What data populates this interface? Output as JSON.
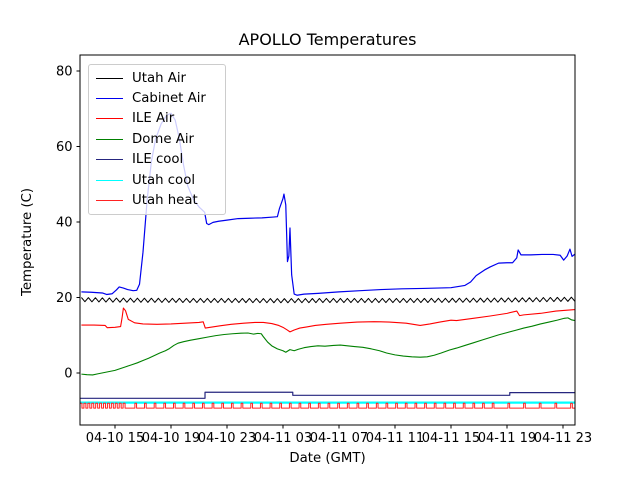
{
  "chart_data": {
    "type": "line",
    "title": "APOLLO Temperatures",
    "xlabel": "Date (GMT)",
    "ylabel": "Temperature (C)",
    "grid": false,
    "x_axis": {
      "unit": "hours relative to 04-10 12:00 GMT (derived from tick labels)",
      "tick_hours": [
        3,
        7,
        11,
        15,
        19,
        23,
        27,
        31,
        35
      ],
      "tick_labels": [
        "04-10 15",
        "04-10 19",
        "04-10 23",
        "04-11 03",
        "04-11 07",
        "04-11 11",
        "04-11 15",
        "04-11 19",
        "04-11 23"
      ],
      "xlim_hours": [
        0.5,
        35.86
      ]
    },
    "y_axis": {
      "ticks": [
        0,
        20,
        40,
        60,
        80
      ],
      "tick_labels": [
        "0",
        "20",
        "40",
        "60",
        "80"
      ],
      "ylim": [
        -13.77,
        84.23
      ]
    },
    "legend": {
      "position": "upper left"
    },
    "series": [
      {
        "name": "Utah Air",
        "color": "#000000",
        "width": 1.0,
        "style": "sawtooth",
        "amplitude": 0.55,
        "period_h": 0.5,
        "x_start": 0.6,
        "x_end": 35.86,
        "mean_points": [
          [
            0.6,
            19.45
          ],
          [
            3,
            19.3
          ],
          [
            6,
            19.25
          ],
          [
            9,
            19.2
          ],
          [
            12,
            19.2
          ],
          [
            15,
            19.15
          ],
          [
            18,
            19.2
          ],
          [
            21,
            19.2
          ],
          [
            24,
            19.2
          ],
          [
            27,
            19.25
          ],
          [
            30,
            19.3
          ],
          [
            33,
            19.4
          ],
          [
            35.86,
            19.55
          ]
        ]
      },
      {
        "name": "Cabinet Air",
        "color": "#0000ee",
        "width": 1.2,
        "style": "points",
        "points": [
          [
            0.6,
            21.5
          ],
          [
            1.3,
            21.4
          ],
          [
            2.1,
            21.2
          ],
          [
            2.4,
            20.8
          ],
          [
            2.8,
            21.0
          ],
          [
            3.1,
            22.0
          ],
          [
            3.3,
            22.8
          ],
          [
            3.6,
            22.5
          ],
          [
            3.9,
            22.1
          ],
          [
            4.3,
            21.8
          ],
          [
            4.55,
            21.9
          ],
          [
            4.75,
            23.5
          ],
          [
            5.0,
            32.0
          ],
          [
            5.3,
            46.0
          ],
          [
            5.6,
            56.0
          ],
          [
            5.9,
            62.0
          ],
          [
            6.3,
            66.0
          ],
          [
            6.7,
            68.3
          ],
          [
            7.0,
            68.8
          ],
          [
            7.3,
            67.0
          ],
          [
            7.6,
            62.0
          ],
          [
            7.9,
            55.0
          ],
          [
            8.2,
            49.5
          ],
          [
            8.6,
            46.0
          ],
          [
            9.0,
            44.0
          ],
          [
            9.4,
            42.6
          ],
          [
            9.55,
            39.6
          ],
          [
            9.7,
            39.3
          ],
          [
            10.0,
            39.9
          ],
          [
            10.4,
            40.2
          ],
          [
            11.0,
            40.5
          ],
          [
            11.8,
            40.9
          ],
          [
            12.6,
            41.0
          ],
          [
            13.5,
            41.1
          ],
          [
            14.3,
            41.3
          ],
          [
            14.6,
            41.4
          ],
          [
            14.75,
            43.6
          ],
          [
            15.0,
            46.2
          ],
          [
            15.07,
            47.4
          ],
          [
            15.2,
            44.5
          ],
          [
            15.32,
            29.5
          ],
          [
            15.42,
            31.0
          ],
          [
            15.5,
            38.4
          ],
          [
            15.62,
            26.0
          ],
          [
            15.8,
            20.9
          ],
          [
            16.0,
            20.6
          ],
          [
            16.5,
            20.9
          ],
          [
            17.5,
            21.1
          ],
          [
            19.0,
            21.5
          ],
          [
            20.5,
            21.8
          ],
          [
            22.0,
            22.1
          ],
          [
            23.5,
            22.3
          ],
          [
            25.0,
            22.4
          ],
          [
            26.0,
            22.5
          ],
          [
            27.0,
            22.6
          ],
          [
            28.0,
            23.2
          ],
          [
            28.4,
            24.1
          ],
          [
            28.8,
            25.8
          ],
          [
            29.4,
            27.3
          ],
          [
            29.8,
            28.1
          ],
          [
            30.4,
            29.1
          ],
          [
            31.0,
            29.2
          ],
          [
            31.4,
            29.2
          ],
          [
            31.7,
            30.5
          ],
          [
            31.8,
            32.6
          ],
          [
            32.0,
            31.3
          ],
          [
            32.7,
            31.3
          ],
          [
            33.5,
            31.4
          ],
          [
            34.3,
            31.4
          ],
          [
            34.8,
            31.2
          ],
          [
            35.05,
            29.9
          ],
          [
            35.3,
            31.0
          ],
          [
            35.5,
            32.8
          ],
          [
            35.65,
            30.9
          ],
          [
            35.86,
            31.5
          ]
        ]
      },
      {
        "name": "ILE Air",
        "color": "#ff0000",
        "width": 1.1,
        "style": "points",
        "points": [
          [
            0.6,
            12.7
          ],
          [
            1.5,
            12.7
          ],
          [
            2.3,
            12.6
          ],
          [
            2.45,
            12.0
          ],
          [
            3.0,
            12.1
          ],
          [
            3.4,
            12.3
          ],
          [
            3.5,
            14.5
          ],
          [
            3.6,
            17.2
          ],
          [
            3.75,
            16.5
          ],
          [
            3.95,
            14.2
          ],
          [
            4.4,
            13.3
          ],
          [
            5.0,
            13.0
          ],
          [
            6.0,
            12.9
          ],
          [
            7.0,
            13.0
          ],
          [
            8.0,
            13.2
          ],
          [
            9.0,
            13.4
          ],
          [
            9.3,
            13.55
          ],
          [
            9.45,
            11.9
          ],
          [
            9.8,
            12.1
          ],
          [
            10.5,
            12.5
          ],
          [
            11.3,
            12.9
          ],
          [
            12.2,
            13.2
          ],
          [
            13.0,
            13.4
          ],
          [
            13.6,
            13.4
          ],
          [
            14.2,
            13.1
          ],
          [
            14.7,
            12.6
          ],
          [
            15.0,
            12.1
          ],
          [
            15.3,
            11.4
          ],
          [
            15.5,
            10.9
          ],
          [
            15.8,
            11.4
          ],
          [
            16.2,
            11.9
          ],
          [
            16.7,
            12.2
          ],
          [
            17.3,
            12.6
          ],
          [
            18.1,
            12.9
          ],
          [
            19.1,
            13.2
          ],
          [
            20.3,
            13.5
          ],
          [
            21.5,
            13.6
          ],
          [
            22.6,
            13.5
          ],
          [
            23.8,
            13.2
          ],
          [
            24.8,
            12.6
          ],
          [
            25.5,
            13.0
          ],
          [
            26.2,
            13.5
          ],
          [
            27.0,
            14.0
          ],
          [
            27.4,
            13.9
          ],
          [
            28.6,
            14.5
          ],
          [
            29.8,
            15.1
          ],
          [
            31.0,
            15.8
          ],
          [
            31.7,
            16.4
          ],
          [
            31.9,
            15.2
          ],
          [
            32.2,
            15.4
          ],
          [
            33.4,
            15.8
          ],
          [
            34.5,
            16.4
          ],
          [
            35.86,
            16.8
          ]
        ]
      },
      {
        "name": "Dome Air",
        "color": "#008000",
        "width": 1.1,
        "style": "points",
        "points": [
          [
            0.6,
            -0.3
          ],
          [
            1.0,
            -0.45
          ],
          [
            1.4,
            -0.5
          ],
          [
            1.8,
            -0.2
          ],
          [
            2.2,
            0.1
          ],
          [
            2.6,
            0.4
          ],
          [
            3.0,
            0.7
          ],
          [
            3.4,
            1.2
          ],
          [
            3.8,
            1.7
          ],
          [
            4.2,
            2.2
          ],
          [
            4.6,
            2.7
          ],
          [
            5.0,
            3.3
          ],
          [
            5.4,
            3.9
          ],
          [
            5.8,
            4.6
          ],
          [
            6.2,
            5.3
          ],
          [
            6.6,
            5.9
          ],
          [
            6.9,
            6.5
          ],
          [
            7.2,
            7.3
          ],
          [
            7.5,
            7.9
          ],
          [
            7.9,
            8.3
          ],
          [
            8.4,
            8.7
          ],
          [
            9.0,
            9.1
          ],
          [
            9.6,
            9.5
          ],
          [
            10.2,
            9.9
          ],
          [
            10.8,
            10.2
          ],
          [
            11.4,
            10.4
          ],
          [
            12.0,
            10.55
          ],
          [
            12.5,
            10.6
          ],
          [
            12.9,
            10.3
          ],
          [
            13.2,
            10.5
          ],
          [
            13.45,
            10.4
          ],
          [
            13.6,
            9.6
          ],
          [
            13.9,
            8.2
          ],
          [
            14.2,
            7.2
          ],
          [
            14.6,
            6.4
          ],
          [
            15.0,
            5.9
          ],
          [
            15.2,
            5.5
          ],
          [
            15.5,
            6.2
          ],
          [
            15.8,
            5.9
          ],
          [
            16.1,
            6.3
          ],
          [
            16.5,
            6.7
          ],
          [
            17.0,
            7.0
          ],
          [
            17.5,
            7.2
          ],
          [
            18.0,
            7.1
          ],
          [
            18.6,
            7.3
          ],
          [
            19.1,
            7.4
          ],
          [
            19.6,
            7.2
          ],
          [
            20.1,
            7.0
          ],
          [
            20.7,
            6.8
          ],
          [
            21.3,
            6.4
          ],
          [
            21.9,
            5.9
          ],
          [
            22.4,
            5.3
          ],
          [
            23.0,
            4.8
          ],
          [
            23.6,
            4.5
          ],
          [
            24.2,
            4.3
          ],
          [
            24.8,
            4.2
          ],
          [
            25.3,
            4.3
          ],
          [
            25.8,
            4.7
          ],
          [
            26.3,
            5.3
          ],
          [
            26.9,
            6.1
          ],
          [
            27.4,
            6.6
          ],
          [
            28.0,
            7.3
          ],
          [
            28.6,
            8.0
          ],
          [
            29.2,
            8.7
          ],
          [
            29.8,
            9.4
          ],
          [
            30.4,
            10.1
          ],
          [
            31.0,
            10.7
          ],
          [
            31.6,
            11.3
          ],
          [
            32.2,
            11.9
          ],
          [
            32.8,
            12.4
          ],
          [
            33.4,
            13.0
          ],
          [
            34.0,
            13.5
          ],
          [
            34.6,
            14.0
          ],
          [
            35.1,
            14.5
          ],
          [
            35.35,
            14.6
          ],
          [
            35.6,
            14.1
          ],
          [
            35.86,
            13.9
          ]
        ]
      },
      {
        "name": "ILE cool",
        "color": "#26267f",
        "width": 1.2,
        "style": "points",
        "points": [
          [
            0.5,
            -6.7
          ],
          [
            9.43,
            -6.7
          ],
          [
            9.43,
            -5.1
          ],
          [
            15.7,
            -5.1
          ],
          [
            15.7,
            -5.9
          ],
          [
            31.2,
            -5.9
          ],
          [
            31.2,
            -5.2
          ],
          [
            35.86,
            -5.2
          ]
        ]
      },
      {
        "name": "Utah cool",
        "color": "#00ffff",
        "width": 2.2,
        "style": "points",
        "points": [
          [
            0.5,
            -7.85
          ],
          [
            35.86,
            -7.85
          ]
        ]
      },
      {
        "name": "Utah heat",
        "color": "#ff2222",
        "width": 1.0,
        "style": "pulse",
        "baseline": -9.3,
        "top": -8.0,
        "x_start": 0.5,
        "x_end": 35.86,
        "dense_until": 3.85,
        "dense_period": 0.28,
        "sparse_period": 0.57,
        "sparse_period_late": 1.0,
        "late_after": 30,
        "pulse_width": 0.12
      }
    ]
  },
  "layout_text": {
    "title": "APOLLO Temperatures",
    "xlabel": "Date (GMT)",
    "ylabel": "Temperature (C)"
  }
}
